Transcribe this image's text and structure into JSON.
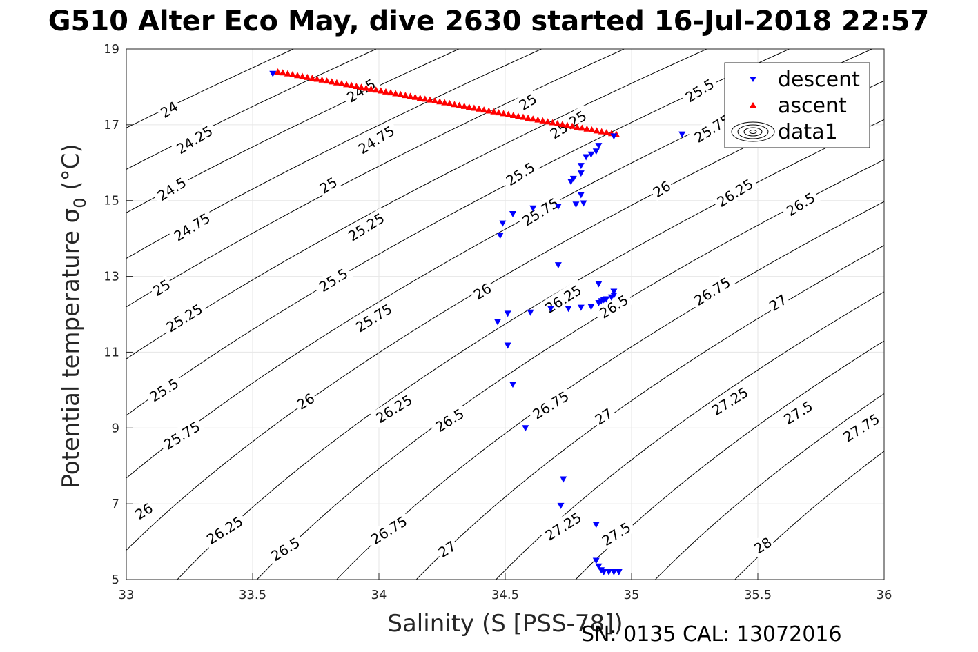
{
  "chart_data": {
    "type": "scatter",
    "title": "G510 Alter Eco May, dive 2630 started 16-Jul-2018 22:57",
    "xlabel": "Salinity (S [PSS-78])",
    "ylabel": "Potential temperature σ",
    "ylabel_sub": "0",
    "ylabel_unit": " (°C)",
    "footer": "SN: 0135  CAL: 13072016",
    "xlim": [
      33,
      36
    ],
    "ylim": [
      5,
      19
    ],
    "xticks": [
      "33",
      "33.5",
      "34",
      "34.5",
      "35",
      "35.5",
      "36"
    ],
    "yticks": [
      "5",
      "7",
      "9",
      "11",
      "13",
      "15",
      "17",
      "19"
    ],
    "grid": true,
    "legend_position": "top-right",
    "legend": [
      {
        "label": "descent",
        "marker": "triangle-down",
        "color": "#0000ff"
      },
      {
        "label": "ascent",
        "marker": "triangle-up",
        "color": "#ff0000"
      },
      {
        "label": "data1",
        "marker": "contour",
        "color": "#000000"
      }
    ],
    "contour_levels": [
      "24",
      "24.25",
      "24.5",
      "24.75",
      "25",
      "25.25",
      "25.5",
      "25.75",
      "26",
      "26.25",
      "26.5",
      "26.75",
      "27",
      "27.25",
      "27.5",
      "27.75",
      "28"
    ],
    "contour_labels": [
      {
        "text": "24",
        "s": 33.17,
        "t": 17.4
      },
      {
        "text": "24.25",
        "s": 33.27,
        "t": 16.6
      },
      {
        "text": "24.5",
        "s": 33.18,
        "t": 15.3
      },
      {
        "text": "24.75",
        "s": 33.26,
        "t": 14.3
      },
      {
        "text": "25",
        "s": 33.14,
        "t": 12.7
      },
      {
        "text": "25.25",
        "s": 33.23,
        "t": 11.9
      },
      {
        "text": "25.5",
        "s": 33.15,
        "t": 10.0
      },
      {
        "text": "25.75",
        "s": 33.22,
        "t": 8.8
      },
      {
        "text": "26",
        "s": 33.07,
        "t": 6.8
      },
      {
        "text": "26.25",
        "s": 33.39,
        "t": 6.3
      },
      {
        "text": "26.5",
        "s": 33.63,
        "t": 5.8
      },
      {
        "text": "26.75",
        "s": 34.04,
        "t": 6.3
      },
      {
        "text": "27",
        "s": 34.27,
        "t": 5.8
      },
      {
        "text": "27.25",
        "s": 34.73,
        "t": 6.4
      },
      {
        "text": "27.5",
        "s": 34.94,
        "t": 6.2
      },
      {
        "text": "28",
        "s": 35.52,
        "t": 5.9
      },
      {
        "text": "24.5",
        "s": 33.93,
        "t": 17.9
      },
      {
        "text": "24.75",
        "s": 33.99,
        "t": 16.6
      },
      {
        "text": "25",
        "s": 33.8,
        "t": 15.4
      },
      {
        "text": "25.25",
        "s": 33.95,
        "t": 14.3
      },
      {
        "text": "25.5",
        "s": 33.82,
        "t": 12.9
      },
      {
        "text": "25.75",
        "s": 33.98,
        "t": 11.9
      },
      {
        "text": "26",
        "s": 33.71,
        "t": 9.7
      },
      {
        "text": "26.25",
        "s": 34.06,
        "t": 9.5
      },
      {
        "text": "26.5",
        "s": 34.28,
        "t": 9.2
      },
      {
        "text": "26.75",
        "s": 34.68,
        "t": 9.6
      },
      {
        "text": "27",
        "s": 34.89,
        "t": 9.3
      },
      {
        "text": "27.25",
        "s": 35.39,
        "t": 9.7
      },
      {
        "text": "27.5",
        "s": 35.66,
        "t": 9.4
      },
      {
        "text": "27.75",
        "s": 35.91,
        "t": 9.0
      },
      {
        "text": "25",
        "s": 34.59,
        "t": 17.6
      },
      {
        "text": "25.25",
        "s": 34.75,
        "t": 17.0
      },
      {
        "text": "25.5",
        "s": 34.56,
        "t": 15.7
      },
      {
        "text": "25.75",
        "s": 34.64,
        "t": 14.7
      },
      {
        "text": "26",
        "s": 34.41,
        "t": 12.6
      },
      {
        "text": "26.25",
        "s": 34.73,
        "t": 12.4
      },
      {
        "text": "26.5",
        "s": 34.93,
        "t": 12.2
      },
      {
        "text": "26.75",
        "s": 35.32,
        "t": 12.6
      },
      {
        "text": "27",
        "s": 35.58,
        "t": 12.3
      },
      {
        "text": "25.5",
        "s": 35.27,
        "t": 17.9
      },
      {
        "text": "25.75",
        "s": 35.32,
        "t": 16.9
      },
      {
        "text": "26",
        "s": 35.12,
        "t": 15.3
      },
      {
        "text": "26.25",
        "s": 35.41,
        "t": 15.2
      },
      {
        "text": "26.5",
        "s": 35.67,
        "t": 14.9
      }
    ],
    "series": [
      {
        "name": "descent",
        "marker": "triangle-down",
        "color": "#0000ff",
        "points": [
          [
            33.58,
            18.35
          ],
          [
            34.93,
            16.7
          ],
          [
            35.2,
            16.75
          ],
          [
            34.87,
            16.45
          ],
          [
            34.86,
            16.3
          ],
          [
            34.84,
            16.22
          ],
          [
            34.82,
            16.15
          ],
          [
            34.8,
            15.92
          ],
          [
            34.8,
            15.72
          ],
          [
            34.77,
            15.58
          ],
          [
            34.76,
            15.5
          ],
          [
            34.8,
            15.15
          ],
          [
            34.81,
            14.93
          ],
          [
            34.78,
            14.9
          ],
          [
            34.71,
            14.85
          ],
          [
            34.61,
            14.8
          ],
          [
            34.53,
            14.65
          ],
          [
            34.49,
            14.4
          ],
          [
            34.48,
            14.08
          ],
          [
            34.71,
            13.3
          ],
          [
            34.87,
            12.8
          ],
          [
            34.93,
            12.6
          ],
          [
            34.93,
            12.5
          ],
          [
            34.92,
            12.45
          ],
          [
            34.9,
            12.4
          ],
          [
            34.89,
            12.38
          ],
          [
            34.88,
            12.35
          ],
          [
            34.87,
            12.3
          ],
          [
            34.84,
            12.2
          ],
          [
            34.8,
            12.18
          ],
          [
            34.75,
            12.15
          ],
          [
            34.68,
            12.15
          ],
          [
            34.6,
            12.05
          ],
          [
            34.51,
            12.02
          ],
          [
            34.47,
            11.8
          ],
          [
            34.51,
            11.18
          ],
          [
            34.53,
            10.15
          ],
          [
            34.58,
            9.0
          ],
          [
            34.73,
            7.65
          ],
          [
            34.72,
            6.95
          ],
          [
            34.86,
            6.45
          ],
          [
            34.86,
            5.5
          ],
          [
            34.87,
            5.35
          ],
          [
            34.88,
            5.25
          ],
          [
            34.89,
            5.2
          ],
          [
            34.91,
            5.2
          ],
          [
            34.93,
            5.2
          ],
          [
            34.95,
            5.2
          ]
        ]
      },
      {
        "name": "ascent",
        "marker": "triangle-up",
        "color": "#ff0000",
        "start": [
          33.6,
          18.4
        ],
        "end": [
          34.94,
          16.75
        ],
        "count": 70
      }
    ]
  }
}
